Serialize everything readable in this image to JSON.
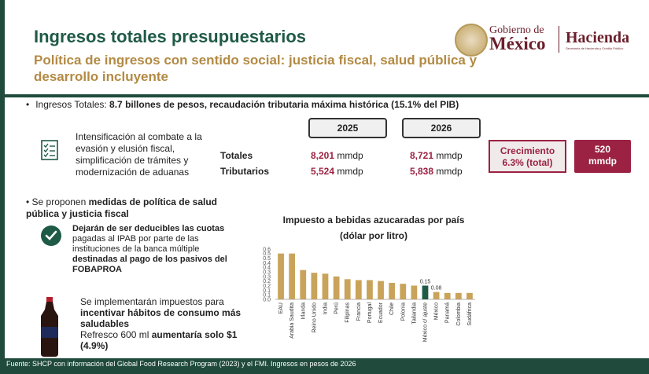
{
  "title": "Ingresos totales presupuestarios",
  "subtitle": "Política de ingresos con sentido social: justicia fiscal, salud pública y desarrollo incluyente",
  "logo": {
    "gob_line1": "Gobierno de",
    "gob_line2": "México",
    "hacienda": "Hacienda",
    "hacienda_sub": "Secretaría de Hacienda y Crédito Público"
  },
  "bullet1": {
    "prefix": "Ingresos Totales: ",
    "bold": "8.7 billones de pesos, recaudación tributaria máxima histórica (15.1% del PIB)"
  },
  "intensificacion": "Intensificación al combate a la evasión y elusión fiscal, simplificación de trámites y modernización de aduanas",
  "table": {
    "years": [
      "2025",
      "2026"
    ],
    "rows": [
      {
        "label": "Totales",
        "v2025": "8,201",
        "v2026": "8,721",
        "unit": "mmdp"
      },
      {
        "label": "Tributarios",
        "v2025": "5,524",
        "v2026": "5,838",
        "unit": "mmdp"
      }
    ]
  },
  "growth": {
    "line1": "Crecimiento",
    "line2": "6.3% (total)"
  },
  "amount": {
    "line1": "520",
    "line2": "mmdp"
  },
  "bullet2": {
    "prefix": "Se proponen ",
    "bold": "medidas de política de salud pública y justicia fiscal"
  },
  "deduct": {
    "bold1": "Dejarán de ser deducibles las cuotas",
    "normal": " pagadas al IPAB por parte de las instituciones de la banca múltiple ",
    "bold2": "destinadas al pago de los pasivos del FOBAPROA"
  },
  "impuestos": {
    "normal1": "Se implementarán impuestos para ",
    "bold1": "incentivar hábitos de consumo más saludables",
    "normal2": "Refresco 600 ml ",
    "bold2": "aumentaría solo $1 (4.9%)"
  },
  "footer": "Fuente: SHCP con información del Global Food Research Program (2023) y el FMI. Ingresos en pesos de 2026",
  "colors": {
    "bar": "#c9a35a",
    "highlight": "#1f5a47",
    "accent": "#9b2242",
    "brand": "#1f4a3c"
  },
  "chart_data": {
    "type": "bar",
    "title": "Impuesto a bebidas azucaradas por país",
    "subtitle": "(dólar por litro)",
    "categories": [
      "EAU",
      "Arabia Saudita",
      "Irlanda",
      "Reino Unido",
      "India",
      "Perú",
      "Filipinas",
      "Francia",
      "Portugal",
      "Ecuador",
      "Chile",
      "Polonia",
      "Tailandia",
      "México c/ ajuste",
      "México",
      "Panamá",
      "Colombia",
      "Sudáfrica"
    ],
    "values": [
      0.5,
      0.5,
      0.32,
      0.29,
      0.28,
      0.25,
      0.22,
      0.21,
      0.21,
      0.2,
      0.18,
      0.17,
      0.15,
      0.15,
      0.08,
      0.07,
      0.07,
      0.07
    ],
    "highlight_index": 13,
    "labeled": [
      {
        "index": 13,
        "label": "0.15"
      },
      {
        "index": 14,
        "label": "0.08"
      }
    ],
    "ylim": [
      0,
      0.6
    ],
    "yticks": [
      "0.0",
      "0.1",
      "0.1",
      "0.2",
      "0.2",
      "0.3",
      "0.3",
      "0.4",
      "0.4",
      "0.5",
      "0.5",
      "0.6"
    ],
    "ytick_values": [
      0.0,
      0.05,
      0.1,
      0.15,
      0.2,
      0.25,
      0.3,
      0.35,
      0.4,
      0.45,
      0.5,
      0.55
    ]
  }
}
